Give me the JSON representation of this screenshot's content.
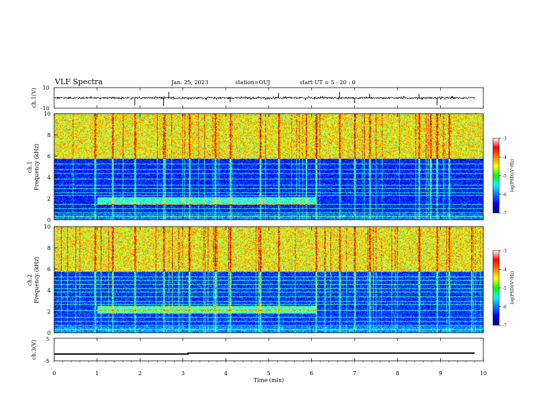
{
  "header": {
    "title": "VLF Spectra",
    "date": "Jan. 25, 2023",
    "station": "station=OUJ",
    "start": "start  UT =   5 : 20 : 0"
  },
  "chart_data": [
    {
      "type": "line",
      "name": "waveform-ch1",
      "ylabel": "ch.1(V)",
      "ylim": [
        -10,
        10
      ],
      "ytick_labels": [
        "10",
        "-10"
      ],
      "xlim": [
        0,
        10
      ],
      "baseline": 0,
      "noise_amplitude": 0.8,
      "spikes": [
        {
          "t": 1.88,
          "v": -7
        },
        {
          "t": 2.55,
          "v": -8
        },
        {
          "t": 2.67,
          "v": 6
        },
        {
          "t": 4.1,
          "v": -4
        },
        {
          "t": 5.23,
          "v": 5
        },
        {
          "t": 6.65,
          "v": 6
        },
        {
          "t": 7.0,
          "v": -5
        },
        {
          "t": 7.35,
          "v": 4
        },
        {
          "t": 8.5,
          "v": 4
        },
        {
          "t": 8.92,
          "v": -7
        }
      ]
    },
    {
      "type": "heatmap",
      "name": "spectrogram-ch1",
      "ylabel": "ch.1 Frequency (kHz)",
      "ylim": [
        0,
        10
      ],
      "ytick_labels": [
        "0",
        "2",
        "4",
        "6",
        "8",
        "10"
      ],
      "xlim": [
        0,
        10
      ],
      "colorbar": {
        "label": "log(PSD)(V²/Hz)",
        "range": [
          -7,
          -3
        ],
        "tick_labels": [
          "-3",
          "-4",
          "-5",
          "-6",
          "-7"
        ]
      },
      "noise_floor_band_khz": [
        0,
        5.8
      ],
      "hiss_band_khz": [
        5.8,
        10
      ],
      "mean_log_psd_hiss": -4.5,
      "mean_log_psd_floor": -6.4,
      "whistler_band": {
        "t_start": 1.0,
        "t_end": 6.1,
        "f_khz": 1.8
      },
      "strong_impulses_min": [
        0.95,
        1.36,
        1.88,
        2.55,
        3.15,
        3.75,
        4.1,
        4.8,
        5.23,
        6.1,
        6.65,
        7.0,
        7.35,
        8.5,
        8.92,
        9.2
      ],
      "narrowband_lines_khz": [
        0.3,
        0.7,
        1.1,
        1.5,
        2.3,
        2.6,
        3.0,
        3.3,
        3.9,
        4.4,
        4.8,
        5.3
      ]
    },
    {
      "type": "heatmap",
      "name": "spectrogram-ch2",
      "ylabel": "ch.2 Frequency (kHz)",
      "ylim": [
        0,
        10
      ],
      "ytick_labels": [
        "0",
        "2",
        "4",
        "6",
        "8",
        "10"
      ],
      "xlim": [
        0,
        10
      ],
      "colorbar": {
        "label": "log(PSD)(V²/Hz)",
        "range": [
          -7,
          -3
        ],
        "tick_labels": [
          "-3",
          "-4",
          "-5",
          "-6",
          "-7"
        ]
      },
      "noise_floor_band_khz": [
        0,
        5.8
      ],
      "hiss_band_khz": [
        5.8,
        10
      ],
      "mean_log_psd_hiss": -4.5,
      "mean_log_psd_floor": -6.3,
      "whistler_band": {
        "t_start": 1.0,
        "t_end": 6.1,
        "f_khz": 2.2
      },
      "strong_impulses_min": [
        0.95,
        1.36,
        1.88,
        2.55,
        3.15,
        3.75,
        4.1,
        4.8,
        5.23,
        6.1,
        6.65,
        7.0,
        7.35,
        8.5,
        8.92,
        9.2
      ],
      "narrowband_lines_khz": [
        0.3,
        0.7,
        1.1,
        1.5,
        2.1,
        2.7,
        3.0,
        3.4,
        3.9,
        4.2,
        4.6,
        5.0,
        5.3
      ]
    },
    {
      "type": "line",
      "name": "waveform-ch3",
      "ylabel": "ch.3(V)",
      "ylim": [
        -5,
        5
      ],
      "ytick_labels": [
        "5",
        "-5"
      ],
      "xlim": [
        0,
        10
      ],
      "xlabel": "Time  (min)",
      "xtick_labels": [
        "0",
        "1",
        "2",
        "3",
        "4",
        "5",
        "6",
        "7",
        "8",
        "9",
        "10"
      ],
      "points": [
        {
          "t": 0,
          "v": -2.0
        },
        {
          "t": 3.12,
          "v": -2.0
        },
        {
          "t": 3.12,
          "v": -1.6
        },
        {
          "t": 9.8,
          "v": -1.6
        }
      ]
    }
  ]
}
